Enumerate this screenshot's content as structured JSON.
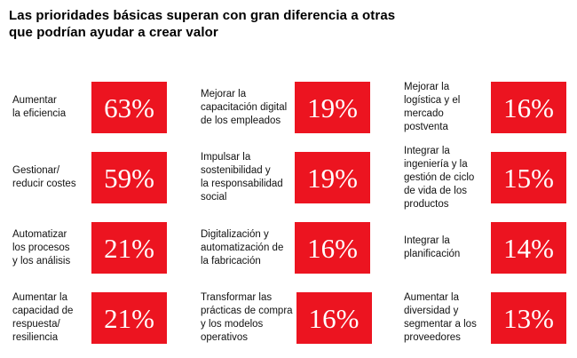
{
  "title": "Las prioridades básicas superan con gran diferencia a otras\nque podrían ayudar a crear valor",
  "colors": {
    "box_red": "#ec1420",
    "value_text": "#ffffff",
    "label_text": "#111111",
    "background": "#ffffff"
  },
  "items": [
    {
      "label": "Aumentar\nla eficiencia",
      "value_label": "63%"
    },
    {
      "label": "Mejorar la\ncapacitación digital\nde los empleados",
      "value_label": "19%"
    },
    {
      "label": "Mejorar la\nlogística y el\nmercado\npostventa",
      "value_label": "16%"
    },
    {
      "label": "Gestionar/\nreducir costes",
      "value_label": "59%"
    },
    {
      "label": "Impulsar la\nsostenibilidad y\nla responsabilidad\nsocial",
      "value_label": "19%"
    },
    {
      "label": "Integrar la\ningeniería y la\ngestión de ciclo\nde vida de los\nproductos",
      "value_label": "15%"
    },
    {
      "label": "Automatizar\nlos procesos\ny los análisis",
      "value_label": "21%"
    },
    {
      "label": "Digitalización y\nautomatización de\nla fabricación",
      "value_label": "16%"
    },
    {
      "label": "Integrar la\nplanificación",
      "value_label": "14%"
    },
    {
      "label": "Aumentar la\ncapacidad de\nrespuesta/\nresiliencia",
      "value_label": "21%"
    },
    {
      "label": "Transformar las\nprácticas de compra\ny los modelos\noperativos",
      "value_label": "16%"
    },
    {
      "label": "Aumentar la\ndiversidad y\nsegmentar a los\nproveedores",
      "value_label": "13%"
    }
  ],
  "chart_data": {
    "type": "table",
    "title": "Las prioridades básicas superan con gran diferencia a otras que podrían ayudar a crear valor",
    "unit": "%",
    "layout": "3 columns x 4 rows, row-major; each entry = label + red box with percentage",
    "categories": [
      "Aumentar la eficiencia",
      "Mejorar la capacitación digital de los empleados",
      "Mejorar la logística y el mercado postventa",
      "Gestionar/reducir costes",
      "Impulsar la sostenibilidad y la responsabilidad social",
      "Integrar la ingeniería y la gestión de ciclo de vida de los productos",
      "Automatizar los procesos y los análisis",
      "Digitalización y automatización de la fabricación",
      "Integrar la planificación",
      "Aumentar la capacidad de respuesta/resiliencia",
      "Transformar las prácticas de compra y los modelos operativos",
      "Aumentar la diversidad y segmentar a los proveedores"
    ],
    "values": [
      63,
      19,
      16,
      59,
      19,
      15,
      21,
      16,
      14,
      21,
      16,
      13
    ]
  }
}
